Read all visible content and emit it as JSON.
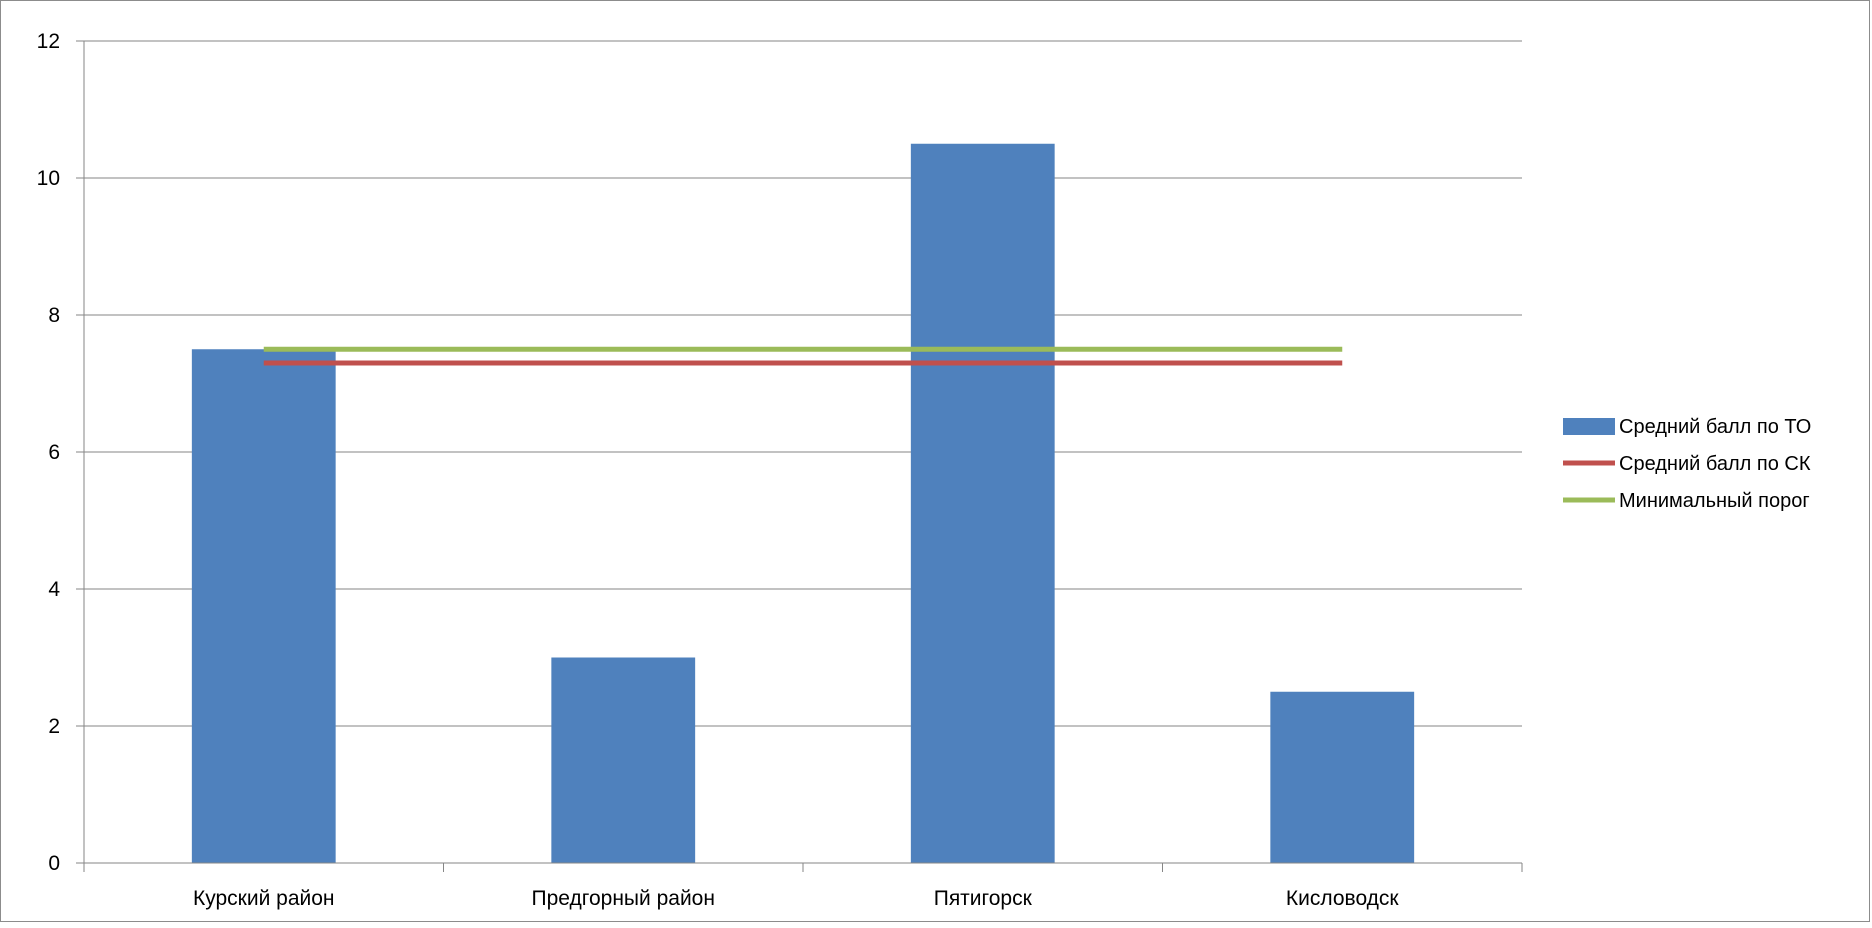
{
  "chart_data": {
    "type": "bar",
    "title": "",
    "xlabel": "",
    "ylabel": "",
    "categories": [
      "Курский район",
      "Предгорный район",
      "Пятигорск",
      "Кисловодск"
    ],
    "ylim": [
      0,
      12
    ],
    "yticks": [
      "0",
      "2",
      "4",
      "6",
      "8",
      "10",
      "12"
    ],
    "grid": true,
    "legend_position": "right",
    "series": [
      {
        "name": "Средний балл по ТО",
        "kind": "bar",
        "color": "#4f81bd",
        "values": [
          7.5,
          3.0,
          10.5,
          2.5
        ]
      },
      {
        "name": "Средний балл по СК",
        "kind": "line",
        "color": "#c0504d",
        "values": [
          7.3,
          7.3,
          7.3,
          7.3
        ]
      },
      {
        "name": "Минимальный порог",
        "kind": "line",
        "color": "#9bbb59",
        "values": [
          7.5,
          7.5,
          7.5,
          7.5
        ]
      }
    ]
  }
}
